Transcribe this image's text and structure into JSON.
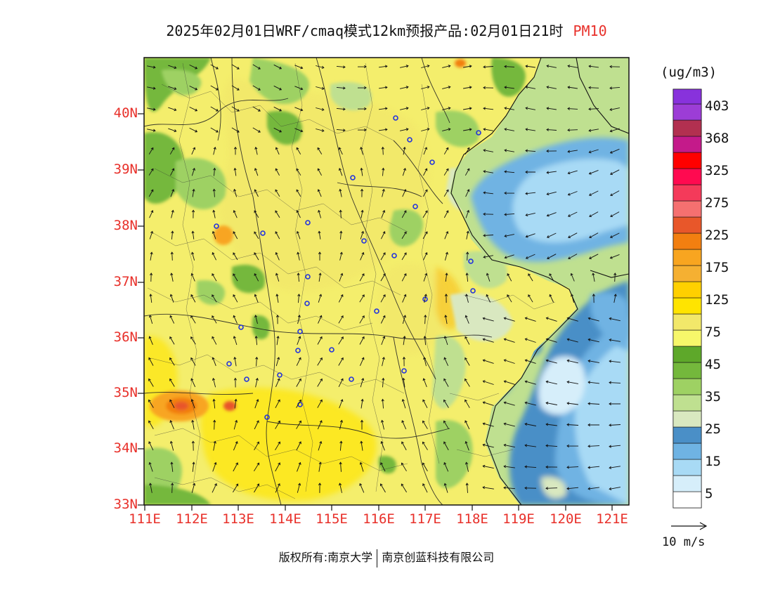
{
  "title": {
    "main": "2025年02月01日WRF/cmaq模式12km预报产品:02月01日21时",
    "species": "PM10"
  },
  "map": {
    "lat_labels": [
      "40N",
      "39N",
      "38N",
      "37N",
      "36N",
      "35N",
      "34N",
      "33N"
    ],
    "lon_labels": [
      "111E",
      "112E",
      "113E",
      "114E",
      "115E",
      "116E",
      "117E",
      "118E",
      "119E",
      "120E",
      "121E"
    ],
    "extent": {
      "lon_min": 110.98,
      "lon_max": 121.35,
      "lat_min": 33.0,
      "lat_max": 40.97
    },
    "city_markers": 26
  },
  "colorbar": {
    "unit": "(ug/m3)",
    "labels": [
      "403",
      "368",
      "325",
      "275",
      "225",
      "175",
      "125",
      "75",
      "45",
      "35",
      "25",
      "15",
      "5"
    ],
    "colors": [
      "#ffffff",
      "#d6eefa",
      "#a8daf5",
      "#6fb3e3",
      "#4a8fc7",
      "#d9e8c0",
      "#bfe090",
      "#9ed163",
      "#74b83c",
      "#f7f76a",
      "#f2e86a",
      "#ffe400",
      "#f5b032",
      "#f8a520",
      "#f27f10",
      "#e8572a",
      "#f57070",
      "#f43a5a",
      "#ff2020",
      "#c41a8a",
      "#b23050",
      "#9c3dd6",
      "#8832dc"
    ]
  },
  "wind_reference": {
    "label": "10 m/s"
  },
  "copyright": {
    "left": "版权所有:南京大学",
    "right": "南京创蓝科技有限公司"
  }
}
